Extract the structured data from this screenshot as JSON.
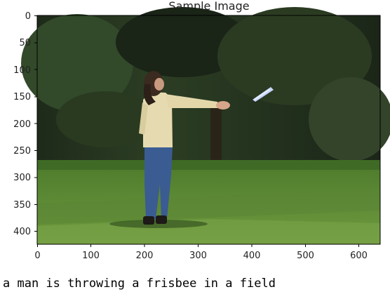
{
  "chart_data": {
    "type": "image",
    "title": "Sample Image",
    "xlim": [
      0,
      640
    ],
    "ylim": [
      427,
      0
    ],
    "x_ticks": [
      0,
      100,
      200,
      300,
      400,
      500,
      600
    ],
    "y_ticks": [
      0,
      50,
      100,
      150,
      200,
      250,
      300,
      350,
      400
    ],
    "grid": false
  },
  "caption": "a man is throwing a frisbee in a field",
  "colors": {
    "sky_dark": "#1f2a1c",
    "trees": "#26351f",
    "grass": "#5d8a34",
    "grass_light": "#7aa148",
    "shirt": "#e6dbb0",
    "jeans": "#2f4f86",
    "frisbee": "#c8d6ff"
  }
}
